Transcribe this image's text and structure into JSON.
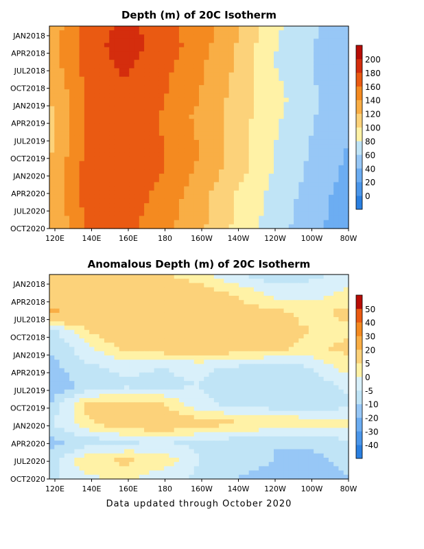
{
  "footer": "Data updated through October 2020",
  "chart_data": [
    {
      "type": "heatmap",
      "title": "Depth (m) of 20C Isotherm",
      "xlabel": "",
      "ylabel": "",
      "x_ticks": [
        "120E",
        "140E",
        "160E",
        "180",
        "160W",
        "140W",
        "120W",
        "100W",
        "80W"
      ],
      "y_ticks": [
        "JAN2018",
        "APR2018",
        "JUL2018",
        "OCT2018",
        "JAN2019",
        "APR2019",
        "JUL2019",
        "OCT2019",
        "JAN2020",
        "APR2020",
        "JUL2020",
        "OCT2020"
      ],
      "colorbar": {
        "labels": [
          "0",
          "20",
          "40",
          "60",
          "80",
          "100",
          "120",
          "140",
          "160",
          "180",
          "200"
        ],
        "colors": [
          "#2a7fe0",
          "#4a96ea",
          "#6cadf2",
          "#97c7f6",
          "#c0e4f6",
          "#fff2a6",
          "#fcd27a",
          "#f9ae45",
          "#f48a20",
          "#ea5a12",
          "#d42d0d",
          "#b80d06"
        ]
      },
      "x_lon": [
        120,
        140,
        160,
        180,
        200,
        220,
        240,
        260,
        280
      ],
      "y_months": [
        "JAN2018",
        "APR2018",
        "JUL2018",
        "OCT2018",
        "JAN2019",
        "APR2019",
        "JUL2019",
        "OCT2019",
        "JAN2020",
        "APR2020",
        "JUL2020",
        "OCT2020"
      ],
      "values": [
        [
          125,
          165,
          185,
          170,
          148,
          125,
          85,
          65,
          45
        ],
        [
          130,
          170,
          190,
          172,
          150,
          120,
          82,
          62,
          40
        ],
        [
          128,
          168,
          185,
          168,
          145,
          118,
          80,
          60,
          42
        ],
        [
          120,
          165,
          180,
          165,
          142,
          115,
          85,
          62,
          44
        ],
        [
          118,
          162,
          178,
          162,
          140,
          112,
          88,
          65,
          45
        ],
        [
          115,
          160,
          172,
          158,
          135,
          110,
          85,
          62,
          42
        ],
        [
          112,
          162,
          175,
          160,
          138,
          110,
          82,
          60,
          40
        ],
        [
          118,
          165,
          178,
          162,
          140,
          112,
          78,
          58,
          38
        ],
        [
          120,
          168,
          176,
          160,
          135,
          108,
          78,
          55,
          35
        ],
        [
          122,
          172,
          174,
          155,
          130,
          100,
          75,
          52,
          30
        ],
        [
          120,
          165,
          170,
          150,
          128,
          98,
          72,
          50,
          28
        ],
        [
          118,
          160,
          168,
          148,
          125,
          95,
          70,
          48,
          25
        ]
      ]
    },
    {
      "type": "heatmap",
      "title": "Anomalous Depth (m) of 20C Isotherm",
      "xlabel": "",
      "ylabel": "",
      "x_ticks": [
        "120E",
        "140E",
        "160E",
        "180",
        "160W",
        "140W",
        "120W",
        "100W",
        "80W"
      ],
      "y_ticks": [
        "JAN2018",
        "APR2018",
        "JUL2018",
        "OCT2018",
        "JAN2019",
        "APR2019",
        "JUL2019",
        "OCT2019",
        "JAN2020",
        "APR2020",
        "JUL2020",
        "OCT2020"
      ],
      "colorbar": {
        "labels": [
          "-40",
          "-30",
          "-20",
          "-10",
          "-5",
          "0",
          "5",
          "20",
          "30",
          "40",
          "50"
        ],
        "colors": [
          "#2a7fe0",
          "#4a96ea",
          "#6cadf2",
          "#97c7f6",
          "#c0e4f6",
          "#d9f0fa",
          "#fff2a6",
          "#fcd27a",
          "#f9ae45",
          "#f48a20",
          "#ea5a12",
          "#b80d06"
        ]
      },
      "x_lon": [
        120,
        140,
        160,
        180,
        200,
        220,
        240,
        260,
        280
      ],
      "y_months": [
        "JAN2018",
        "APR2018",
        "JUL2018",
        "OCT2018",
        "JAN2019",
        "APR2019",
        "JUL2019",
        "OCT2019",
        "JAN2020",
        "APR2020",
        "JUL2020",
        "OCT2020"
      ],
      "values": [
        [
          8,
          10,
          9,
          6,
          2,
          -5,
          -8,
          -6,
          -4
        ],
        [
          15,
          12,
          14,
          10,
          8,
          4,
          -2,
          -3,
          2
        ],
        [
          22,
          15,
          14,
          12,
          10,
          8,
          6,
          4,
          6
        ],
        [
          -8,
          5,
          12,
          10,
          10,
          8,
          6,
          5,
          4
        ],
        [
          -10,
          -2,
          6,
          8,
          10,
          8,
          6,
          4,
          6
        ],
        [
          -12,
          -6,
          -4,
          -5,
          -4,
          -6,
          -8,
          -5,
          3
        ],
        [
          -15,
          -8,
          -6,
          -6,
          -5,
          -8,
          -10,
          -8,
          -4
        ],
        [
          -10,
          6,
          8,
          6,
          -4,
          -6,
          -8,
          -10,
          -6
        ],
        [
          -6,
          4,
          10,
          12,
          8,
          6,
          5,
          4,
          2
        ],
        [
          -12,
          -8,
          -6,
          -5,
          -6,
          -8,
          -10,
          -8,
          -6
        ],
        [
          -8,
          4,
          6,
          4,
          -5,
          -8,
          -10,
          -12,
          -8
        ],
        [
          -6,
          -2,
          2,
          -4,
          -6,
          -10,
          -12,
          -14,
          -10
        ]
      ]
    }
  ]
}
